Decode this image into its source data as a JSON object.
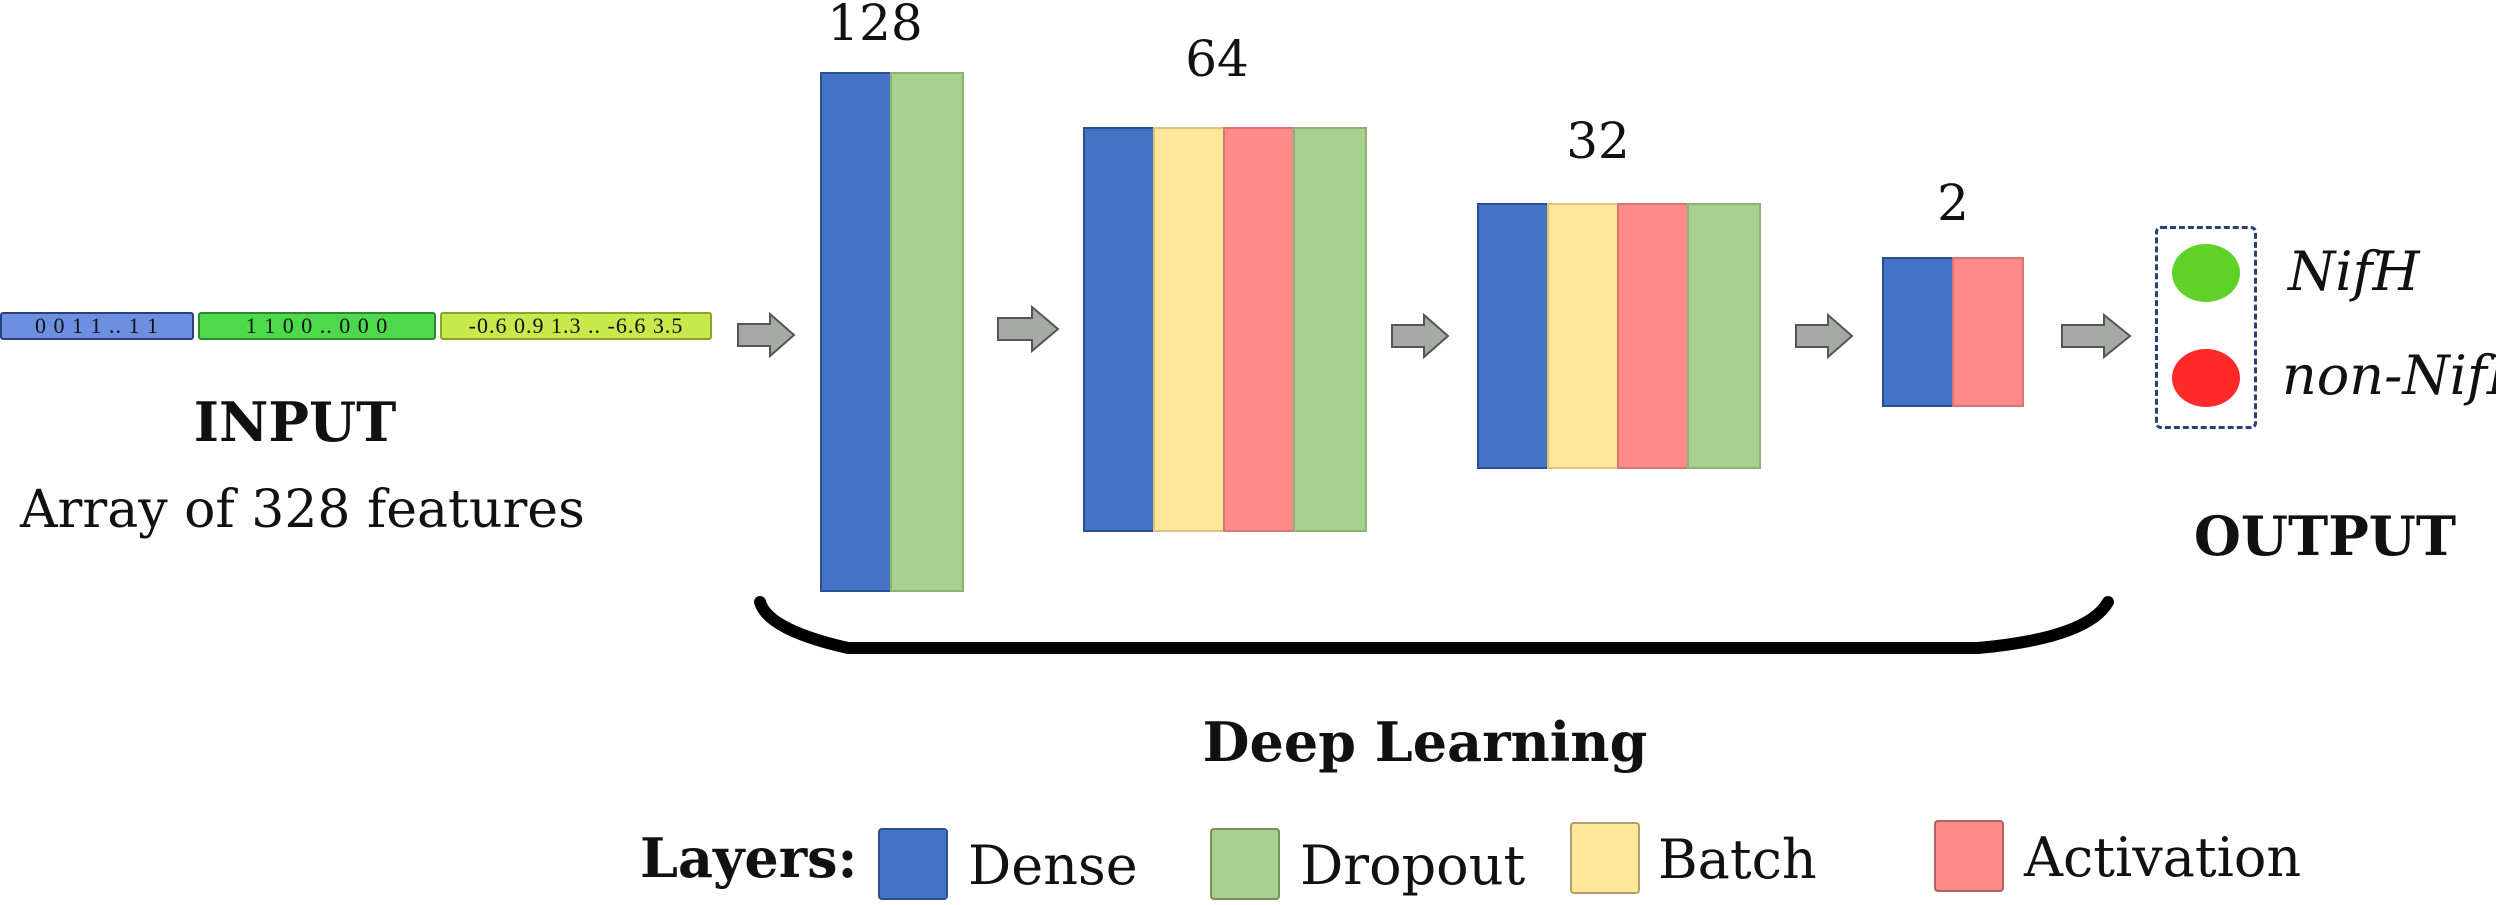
{
  "input": {
    "vector_binary1": "0 0 1 1 .. 1 1",
    "vector_binary2": "1 1 0 0 .. 0 0 0",
    "vector_real": "-0.6  0.9  1.3  ..  -6.6  3.5",
    "title": "INPUT",
    "subtitle": "Array of 328 features"
  },
  "layers": [
    {
      "size": "128",
      "composition": [
        "dense",
        "dropout"
      ]
    },
    {
      "size": "64",
      "composition": [
        "dense",
        "batch",
        "activation",
        "dropout"
      ]
    },
    {
      "size": "32",
      "composition": [
        "dense",
        "batch",
        "activation",
        "dropout"
      ]
    },
    {
      "size": "2",
      "composition": [
        "dense",
        "activation"
      ]
    }
  ],
  "output": {
    "title": "OUTPUT",
    "classes": [
      {
        "label": "NifH",
        "color": "#5fd22a"
      },
      {
        "label": "non-NifH",
        "color": "#ff2a2a"
      }
    ]
  },
  "brace_label": "Deep Learning",
  "legend": {
    "title": "Layers:",
    "items": [
      {
        "label": "Dense",
        "color": "#4472c4"
      },
      {
        "label": "Dropout",
        "color": "#a9d18e"
      },
      {
        "label": "Batch",
        "color": "#ffe699"
      },
      {
        "label": "Activation",
        "color": "#ff8a8a"
      }
    ]
  },
  "colors": {
    "dense": "#4472c4",
    "dropout": "#a9d18e",
    "batch": "#ffe699",
    "activation": "#ff8a8a",
    "arrow": "#a5aaa5",
    "input_binary1": "#6d8fe0",
    "input_binary2": "#4cd94c",
    "input_real": "#c8e84c"
  }
}
